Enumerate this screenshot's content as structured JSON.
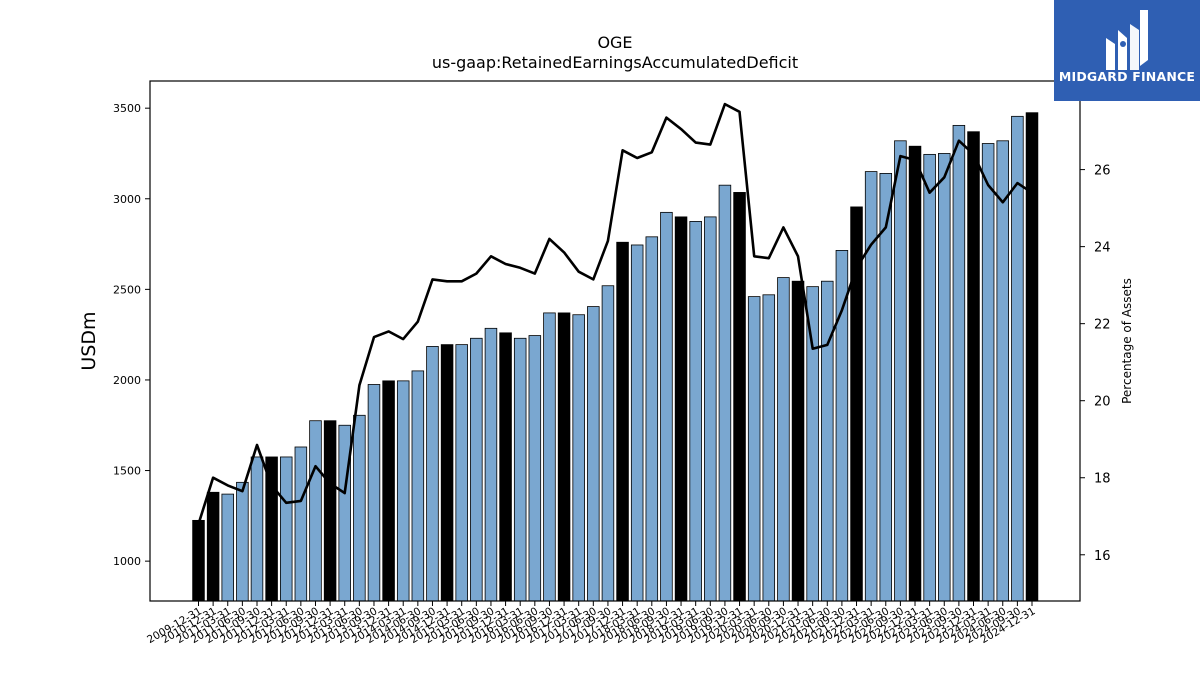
{
  "chart_data": {
    "type": "bar",
    "title": "OGE",
    "subtitle": "us-gaap:RetainedEarningsAccumulatedDeficit",
    "ylabel": "USDm",
    "y2label": "Percentage of Assets",
    "ylim": [
      780,
      3650
    ],
    "y2lim": [
      14.8,
      28.3
    ],
    "yticks": [
      1000,
      1500,
      2000,
      2500,
      3000,
      3500
    ],
    "y2ticks": [
      16,
      18,
      20,
      22,
      24,
      26
    ],
    "grid": false,
    "legend": "none",
    "colors": {
      "bar_quarter": "#7aa7d0",
      "bar_annual": "#000000",
      "line": "#000000"
    },
    "categories": [
      "2009-12-31",
      "2010-12-31",
      "2011-03-31",
      "2011-06-30",
      "2011-09-30",
      "2011-12-31",
      "2012-03-31",
      "2012-06-30",
      "2012-09-30",
      "2012-12-31",
      "2013-03-31",
      "2013-06-30",
      "2013-09-30",
      "2013-12-31",
      "2014-03-31",
      "2014-06-30",
      "2014-09-30",
      "2014-12-31",
      "2015-03-31",
      "2015-06-30",
      "2015-09-30",
      "2015-12-31",
      "2016-03-31",
      "2016-06-30",
      "2016-09-30",
      "2016-12-31",
      "2017-03-31",
      "2017-06-30",
      "2017-09-30",
      "2017-12-31",
      "2018-03-31",
      "2018-06-30",
      "2018-09-30",
      "2018-12-31",
      "2019-03-31",
      "2019-06-30",
      "2019-09-30",
      "2019-12-31",
      "2020-03-31",
      "2020-06-30",
      "2020-09-30",
      "2020-12-31",
      "2021-03-31",
      "2021-06-30",
      "2021-09-30",
      "2021-12-31",
      "2022-03-31",
      "2022-06-30",
      "2022-09-30",
      "2022-12-31",
      "2023-03-31",
      "2023-06-30",
      "2023-09-30",
      "2023-12-31",
      "2024-03-31",
      "2024-06-30",
      "2024-09-30",
      "2024-12-31"
    ],
    "series": [
      {
        "kind": "bar",
        "axis": "left",
        "values": [
          1225,
          1380,
          1370,
          1435,
          1575,
          1575,
          1575,
          1630,
          1775,
          1775,
          1750,
          1805,
          1975,
          1995,
          1995,
          2050,
          2185,
          2195,
          2195,
          2230,
          2285,
          2260,
          2230,
          2245,
          2370,
          2370,
          2360,
          2405,
          2520,
          2760,
          2745,
          2790,
          2925,
          2900,
          2875,
          2900,
          3075,
          3035,
          2460,
          2470,
          2565,
          2545,
          2515,
          2545,
          2715,
          2955,
          3150,
          3140,
          3320,
          3290,
          3245,
          3250,
          3405,
          3370,
          3305,
          3320,
          3455,
          3475
        ]
      },
      {
        "kind": "line",
        "axis": "right",
        "values": [
          16.8,
          18.0,
          17.8,
          17.65,
          18.85,
          17.8,
          17.35,
          17.4,
          18.3,
          17.85,
          17.6,
          20.4,
          21.65,
          21.8,
          21.6,
          22.05,
          23.15,
          23.1,
          23.1,
          23.3,
          23.75,
          23.55,
          23.45,
          23.3,
          24.2,
          23.85,
          23.35,
          23.15,
          24.15,
          26.5,
          26.3,
          26.45,
          27.35,
          27.05,
          26.7,
          26.65,
          27.7,
          27.5,
          23.75,
          23.7,
          24.5,
          23.75,
          21.35,
          21.45,
          22.35,
          23.45,
          24.05,
          24.5,
          26.35,
          26.25,
          25.4,
          25.8,
          26.75,
          26.4,
          25.6,
          25.15,
          25.65,
          25.4
        ]
      }
    ]
  },
  "logo": {
    "text": "MIDGARD FINANCE"
  }
}
